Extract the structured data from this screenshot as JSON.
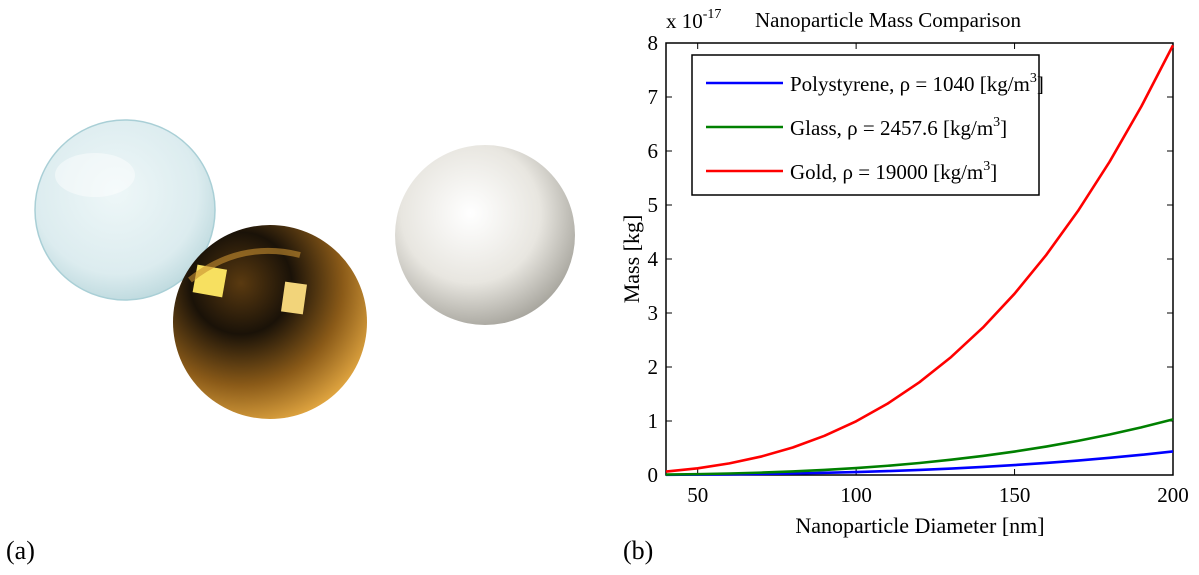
{
  "panels": {
    "left_label": "(a)",
    "right_label": "(b)"
  },
  "illustration": {
    "spheres": [
      "glass-sphere",
      "gold-sphere",
      "polystyrene-sphere"
    ]
  },
  "chart_data": {
    "type": "line",
    "title": "Nanoparticle Mass Comparison",
    "xlabel": "Nanoparticle Diameter [nm]",
    "ylabel": "Mass [kg]",
    "y_multiplier_base": "x 10",
    "y_multiplier_exp": "-17",
    "xlim": [
      40,
      200
    ],
    "ylim": [
      0,
      8
    ],
    "xticks": [
      50,
      100,
      150,
      200
    ],
    "yticks": [
      0,
      1,
      2,
      3,
      4,
      5,
      6,
      7,
      8
    ],
    "grid": false,
    "legend_position": "top-left",
    "x": [
      40,
      50,
      60,
      70,
      80,
      90,
      100,
      110,
      120,
      130,
      140,
      150,
      160,
      170,
      180,
      190,
      200
    ],
    "series": [
      {
        "name_text": "Polystyrene, ρ = 1040 [kg/m",
        "name_sup": "3",
        "name_end": "]",
        "color": "#0000ff",
        "values": [
          0.0035,
          0.0068,
          0.0118,
          0.0187,
          0.0279,
          0.0397,
          0.0545,
          0.0725,
          0.0941,
          0.1196,
          0.1494,
          0.1838,
          0.223,
          0.2675,
          0.3176,
          0.3735,
          0.4356
        ]
      },
      {
        "name_text": "Glass, ρ = 2457.6 [kg/m",
        "name_sup": "3",
        "name_end": "]",
        "color": "#008000",
        "values": [
          0.0082,
          0.0161,
          0.0278,
          0.0441,
          0.0659,
          0.0938,
          0.1287,
          0.1713,
          0.2224,
          0.2827,
          0.3531,
          0.4343,
          0.527,
          0.6321,
          0.7504,
          0.8826,
          1.0294
        ]
      },
      {
        "name_text": "Gold, ρ = 19000 [kg/m",
        "name_sup": "3",
        "name_end": "]",
        "color": "#ff0000",
        "values": [
          0.0637,
          0.1243,
          0.2149,
          0.3412,
          0.5093,
          0.7252,
          0.9948,
          1.3241,
          1.7191,
          2.1857,
          2.73,
          3.3578,
          4.0751,
          4.8879,
          5.8022,
          6.8239,
          7.9587
        ]
      }
    ]
  }
}
